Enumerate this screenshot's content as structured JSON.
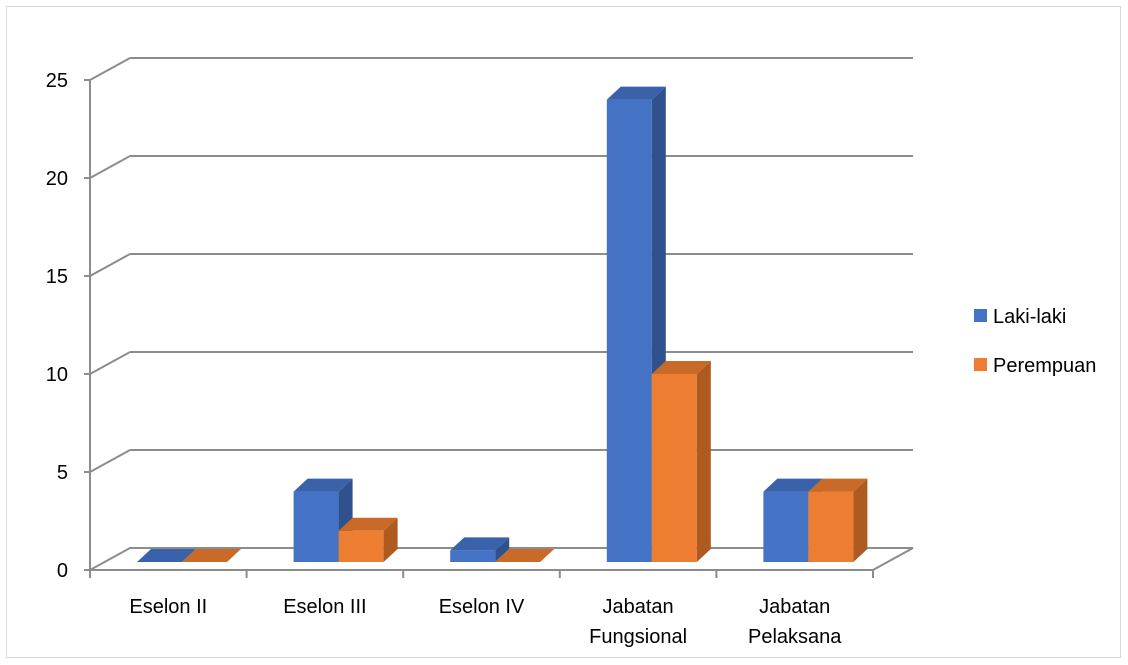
{
  "chart_data": {
    "type": "bar",
    "title": "",
    "xlabel": "",
    "ylabel": "",
    "categories": [
      [
        "Eselon II"
      ],
      [
        "Eselon III"
      ],
      [
        "Eselon IV"
      ],
      [
        "Jabatan",
        "Fungsional"
      ],
      [
        "Jabatan",
        "Pelaksana"
      ]
    ],
    "series": [
      {
        "name": "Laki-laki",
        "values": [
          0,
          4,
          1,
          24,
          4
        ],
        "color": "#4472C4",
        "side_color": "#2F528F",
        "top_color": "#3A62AA"
      },
      {
        "name": "Perempuan",
        "values": [
          0,
          2,
          0,
          10,
          4
        ],
        "color": "#ED7D31",
        "side_color": "#AE5A21",
        "top_color": "#C96A28"
      }
    ],
    "ylim": [
      0,
      25
    ],
    "yticks": [
      "0",
      "5",
      "10",
      "15",
      "20",
      "25"
    ],
    "grid": true,
    "legend_position": "right",
    "bar_style": "3d-clustered-column"
  }
}
